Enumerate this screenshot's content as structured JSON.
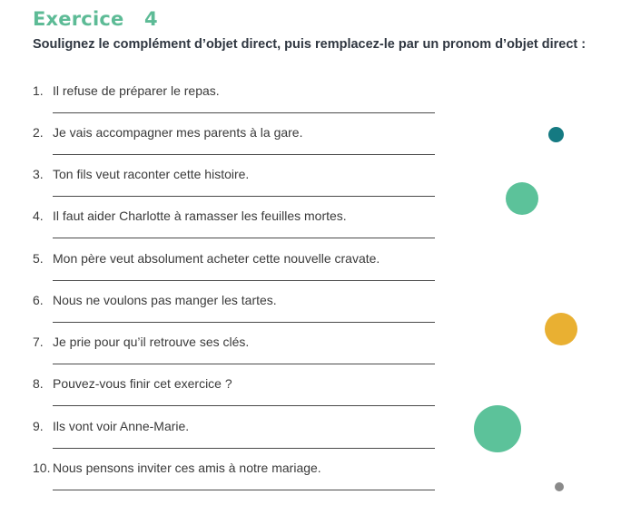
{
  "header": {
    "title": "Exercice   4",
    "instruction": "Soulignez le complément d’objet direct, puis remplacez-le par un pronom d’objet direct   :"
  },
  "items": [
    {
      "number": "1.",
      "text": "Il refuse de préparer le repas."
    },
    {
      "number": "2.",
      "text": "Je vais accompagner mes parents à la gare."
    },
    {
      "number": "3.",
      "text": "Ton fils veut raconter cette histoire."
    },
    {
      "number": "4.",
      "text": "Il faut aider Charlotte à ramasser les feuilles mortes."
    },
    {
      "number": "5.",
      "text": "Mon père veut absolument acheter cette nouvelle cravate."
    },
    {
      "number": "6.",
      "text": "Nous ne voulons pas manger les tartes."
    },
    {
      "number": "7.",
      "text": "Je prie pour qu’il retrouve ses clés."
    },
    {
      "number": "8.",
      "text": "Pouvez-vous finir cet exercice ?"
    },
    {
      "number": "9.",
      "text": "Ils vont voir Anne-Marie."
    },
    {
      "number": "10.",
      "text": "Nous pensons inviter ces amis à notre mariage."
    }
  ],
  "colors": {
    "title": "#5dbb96",
    "teal_dark": "#157a82",
    "green": "#5cc29a",
    "yellow": "#e9b032",
    "gray": "#8a8a8a"
  }
}
